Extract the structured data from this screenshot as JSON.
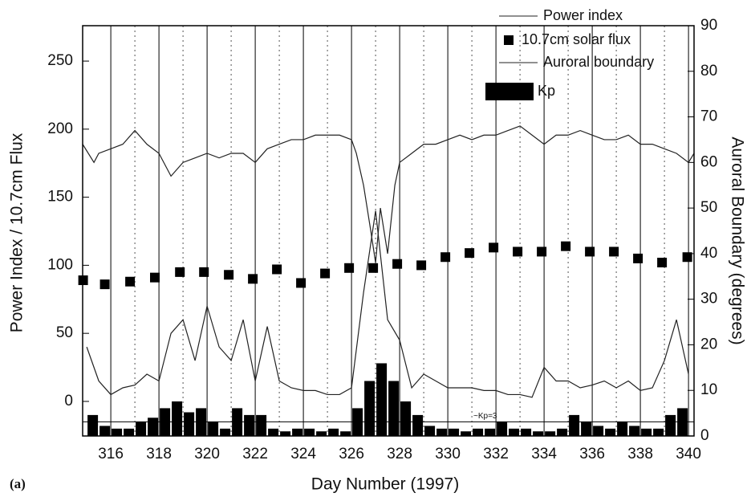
{
  "chart_data": {
    "type": "combo",
    "panel_label": "(a)",
    "xlabel": "Day Number (1997)",
    "ylabel": "Power Index / 10.7cm Flux",
    "y2label": "Auroral Boundary (degrees)",
    "xlim": [
      314.83,
      340.23
    ],
    "xticks": [
      316,
      318,
      320,
      322,
      324,
      326,
      328,
      330,
      332,
      334,
      336,
      338,
      340
    ],
    "ylim": [
      -25.4,
      276
    ],
    "yticks": [
      0,
      50,
      100,
      150,
      200,
      250
    ],
    "y2lim": [
      0,
      90
    ],
    "y2ticks": [
      0,
      10,
      20,
      30,
      40,
      50,
      60,
      70,
      80,
      90
    ],
    "grid": true,
    "annotation": {
      "text": "~Kp=3",
      "y": -15
    },
    "series": [
      {
        "name": "Power index",
        "type": "line",
        "axis": "y",
        "color": "#222",
        "x": [
          315,
          315.5,
          316,
          316.5,
          317,
          317.5,
          318,
          318.5,
          319,
          319.5,
          320,
          320.5,
          321,
          321.5,
          322,
          322.5,
          323,
          323.5,
          324,
          324.5,
          325,
          325.5,
          326,
          326.5,
          327,
          327.5,
          328,
          328.5,
          329,
          329.5,
          330,
          330.5,
          331,
          331.5,
          332,
          332.5,
          333,
          333.5,
          334,
          334.5,
          335,
          335.5,
          336,
          336.5,
          337,
          337.5,
          338,
          338.5,
          339,
          339.5,
          340
        ],
        "values": [
          40,
          15,
          5,
          10,
          12,
          20,
          15,
          50,
          60,
          30,
          70,
          40,
          30,
          60,
          15,
          55,
          15,
          10,
          8,
          8,
          5,
          5,
          10,
          80,
          140,
          60,
          45,
          10,
          20,
          15,
          10,
          10,
          10,
          8,
          8,
          5,
          5,
          3,
          25,
          15,
          15,
          10,
          12,
          15,
          10,
          15,
          8,
          10,
          30,
          60,
          20
        ]
      },
      {
        "name": "10.7cm solar flux",
        "type": "scatter",
        "axis": "y",
        "color": "#000",
        "x": [
          314.85,
          315.75,
          316.8,
          317.83,
          318.87,
          319.87,
          320.9,
          321.9,
          322.9,
          323.9,
          324.9,
          325.9,
          326.9,
          327.9,
          328.9,
          329.9,
          330.9,
          331.9,
          332.9,
          333.9,
          334.9,
          335.9,
          336.9,
          337.9,
          338.9,
          339.95
        ],
        "values": [
          89,
          86,
          88,
          91,
          95,
          95,
          93,
          90,
          97,
          87,
          94,
          98,
          98,
          101,
          100,
          106,
          109,
          113,
          110,
          110,
          114,
          110,
          110,
          105,
          102,
          106
        ]
      },
      {
        "name": "Auroral boundary",
        "type": "line",
        "axis": "y2",
        "color": "#222",
        "x": [
          314.83,
          315.3,
          315.5,
          316,
          316.5,
          317,
          317.5,
          318,
          318.5,
          319,
          319.5,
          320,
          320.5,
          321,
          321.5,
          322,
          322.5,
          323,
          323.5,
          324,
          324.5,
          325,
          325.5,
          326,
          326.2,
          326.5,
          326.8,
          327,
          327.2,
          327.5,
          327.8,
          328,
          328.5,
          329,
          329.5,
          330,
          330.5,
          331,
          331.5,
          332,
          332.5,
          333,
          333.5,
          334,
          334.5,
          335,
          335.5,
          336,
          336.5,
          337,
          337.5,
          338,
          338.5,
          339,
          339.5,
          340,
          340.23
        ],
        "values": [
          64,
          60,
          62,
          63,
          64,
          67,
          64,
          62,
          57,
          60,
          61,
          62,
          61,
          62,
          62,
          60,
          63,
          64,
          65,
          65,
          66,
          66,
          66,
          65,
          62,
          55,
          45,
          38,
          50,
          40,
          55,
          60,
          62,
          64,
          64,
          65,
          66,
          65,
          66,
          66,
          67,
          68,
          66,
          64,
          66,
          66,
          67,
          66,
          65,
          65,
          66,
          64,
          64,
          63,
          62,
          60,
          62
        ]
      },
      {
        "name": "Kp",
        "type": "bar",
        "axis": "y",
        "color": "#000",
        "bins": [
          315,
          315.5,
          316,
          316.5,
          317,
          317.5,
          318,
          318.5,
          319,
          319.5,
          320,
          320.5,
          321,
          321.5,
          322,
          322.5,
          323,
          323.5,
          324,
          324.5,
          325,
          325.5,
          326,
          326.5,
          327,
          327.5,
          328,
          328.5,
          329,
          329.5,
          330,
          330.5,
          331,
          331.5,
          332,
          332.5,
          333,
          333.5,
          334,
          334.5,
          335,
          335.5,
          336,
          336.5,
          337,
          337.5,
          338,
          338.5,
          339,
          339.5,
          340
        ],
        "values": [
          -10,
          -18,
          -20,
          -20,
          -15,
          -12,
          -5,
          0,
          -8,
          -5,
          -15,
          -20,
          -5,
          -10,
          -10,
          -20,
          -22,
          -20,
          -20,
          -22,
          -20,
          -22,
          -5,
          15,
          28,
          15,
          0,
          -10,
          -18,
          -20,
          -20,
          -22,
          -20,
          -20,
          -15,
          -20,
          -20,
          -22,
          -22,
          -20,
          -10,
          -15,
          -18,
          -20,
          -15,
          -18,
          -20,
          -20,
          -10,
          -5
        ]
      }
    ]
  }
}
